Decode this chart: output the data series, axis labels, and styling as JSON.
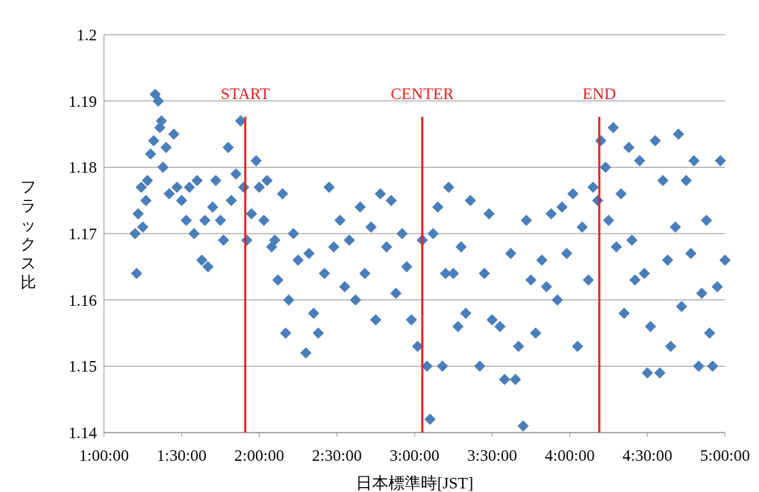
{
  "chart_data": {
    "type": "scatter",
    "xlabel": "日本標準時[JST]",
    "ylabel": "フラックス比",
    "xlim": [
      1,
      5
    ],
    "ylim": [
      1.14,
      1.2
    ],
    "xticks": [
      {
        "value": 1,
        "label": "1:00:00"
      },
      {
        "value": 1.5,
        "label": "1:30:00"
      },
      {
        "value": 2,
        "label": "2:00:00"
      },
      {
        "value": 2.5,
        "label": "2:30:00"
      },
      {
        "value": 3,
        "label": "3:00:00"
      },
      {
        "value": 3.5,
        "label": "3:30:00"
      },
      {
        "value": 4,
        "label": "4:00:00"
      },
      {
        "value": 4.5,
        "label": "4:30:00"
      },
      {
        "value": 5,
        "label": "5:00:00"
      }
    ],
    "yticks": [
      1.14,
      1.15,
      1.16,
      1.17,
      1.18,
      1.19,
      {
        "value": 1.2,
        "label": "1.2"
      }
    ],
    "grid": "y",
    "marker": "diamond",
    "ref_lines": [
      {
        "axis": "x",
        "value": 1.91,
        "label": "START",
        "color": "#e52222"
      },
      {
        "axis": "x",
        "value": 3.05,
        "label": "CENTER",
        "color": "#e52222"
      },
      {
        "axis": "x",
        "value": 4.19,
        "label": "END",
        "color": "#e52222"
      }
    ],
    "series": [
      {
        "color": "#4a7ebb",
        "x": [
          1.2,
          1.21,
          1.22,
          1.24,
          1.25,
          1.27,
          1.28,
          1.3,
          1.32,
          1.33,
          1.35,
          1.36,
          1.37,
          1.38,
          1.4,
          1.42,
          1.45,
          1.47,
          1.5,
          1.53,
          1.55,
          1.58,
          1.6,
          1.63,
          1.65,
          1.67,
          1.7,
          1.72,
          1.75,
          1.77,
          1.8,
          1.82,
          1.85,
          1.88,
          1.9,
          1.92,
          1.95,
          1.98,
          2.0,
          2.03,
          2.05,
          2.08,
          2.1,
          2.12,
          2.15,
          2.17,
          2.19,
          2.22,
          2.25,
          2.3,
          2.32,
          2.35,
          2.38,
          2.42,
          2.45,
          2.48,
          2.52,
          2.55,
          2.58,
          2.62,
          2.65,
          2.68,
          2.72,
          2.75,
          2.78,
          2.82,
          2.85,
          2.88,
          2.92,
          2.95,
          2.98,
          3.02,
          3.05,
          3.08,
          3.1,
          3.12,
          3.15,
          3.18,
          3.2,
          3.22,
          3.25,
          3.28,
          3.3,
          3.33,
          3.36,
          3.42,
          3.45,
          3.48,
          3.5,
          3.55,
          3.58,
          3.62,
          3.65,
          3.67,
          3.7,
          3.72,
          3.75,
          3.78,
          3.82,
          3.85,
          3.88,
          3.92,
          3.95,
          3.98,
          4.02,
          4.05,
          4.08,
          4.12,
          4.15,
          4.18,
          4.2,
          4.23,
          4.25,
          4.28,
          4.3,
          4.33,
          4.35,
          4.38,
          4.4,
          4.42,
          4.45,
          4.48,
          4.5,
          4.52,
          4.55,
          4.58,
          4.6,
          4.63,
          4.65,
          4.68,
          4.7,
          4.72,
          4.75,
          4.78,
          4.8,
          4.83,
          4.85,
          4.88,
          4.9,
          4.92,
          4.95,
          4.97,
          5.0
        ],
        "values": [
          1.17,
          1.164,
          1.173,
          1.177,
          1.171,
          1.175,
          1.178,
          1.182,
          1.184,
          1.191,
          1.19,
          1.186,
          1.187,
          1.18,
          1.183,
          1.176,
          1.185,
          1.177,
          1.175,
          1.172,
          1.177,
          1.17,
          1.178,
          1.166,
          1.172,
          1.165,
          1.174,
          1.178,
          1.172,
          1.169,
          1.183,
          1.175,
          1.179,
          1.187,
          1.177,
          1.169,
          1.173,
          1.181,
          1.177,
          1.172,
          1.178,
          1.168,
          1.169,
          1.163,
          1.176,
          1.155,
          1.16,
          1.17,
          1.166,
          1.152,
          1.167,
          1.158,
          1.155,
          1.164,
          1.177,
          1.168,
          1.172,
          1.162,
          1.169,
          1.16,
          1.174,
          1.164,
          1.171,
          1.157,
          1.176,
          1.168,
          1.175,
          1.161,
          1.17,
          1.165,
          1.157,
          1.153,
          1.169,
          1.15,
          1.142,
          1.17,
          1.174,
          1.15,
          1.164,
          1.177,
          1.164,
          1.156,
          1.168,
          1.158,
          1.175,
          1.15,
          1.164,
          1.173,
          1.157,
          1.156,
          1.148,
          1.167,
          1.148,
          1.153,
          1.141,
          1.172,
          1.163,
          1.155,
          1.166,
          1.162,
          1.173,
          1.16,
          1.174,
          1.167,
          1.176,
          1.153,
          1.171,
          1.163,
          1.177,
          1.175,
          1.184,
          1.18,
          1.172,
          1.186,
          1.168,
          1.176,
          1.158,
          1.183,
          1.169,
          1.163,
          1.181,
          1.164,
          1.149,
          1.156,
          1.184,
          1.149,
          1.178,
          1.166,
          1.153,
          1.171,
          1.185,
          1.159,
          1.178,
          1.167,
          1.181,
          1.15,
          1.161,
          1.172,
          1.155,
          1.15,
          1.162,
          1.181,
          1.166
        ]
      }
    ]
  }
}
